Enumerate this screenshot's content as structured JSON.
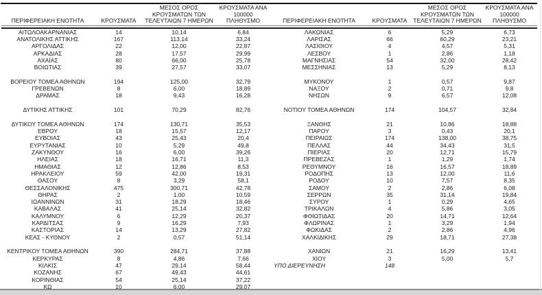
{
  "colors": {
    "background": "#ffffff",
    "text": "#1a1a1a",
    "header_rule": "#1c1c1c",
    "header_underline": "#7a7a7a",
    "top_rule": "#111111",
    "bottom_bar": "#d6d6d6",
    "bottom_bar_border": "#8c8c8c"
  },
  "table": {
    "headers": [
      "ΠΕΡΙΦΕΡΕΙΑΚΗ ΕΝΟΤΗΤΑ",
      "ΚΡΟΥΣΜΑΤΑ",
      "ΜΕΣΟΣ ΟΡΟΣ\nΚΡΟΥΣΜΑΤΩΝ ΤΩΝ\nΤΕΛΕΥΤΑΙΩΝ 7 ΗΜΕΡΩΝ",
      "ΚΡΟΥΣΜΑΤΑ ΑΝΑ 100000\nΠΛΗΘΥΣΜΟ"
    ],
    "left_rows": [
      {
        "name": "ΑΙΤΩΛΟΑΚΑΡΝΑΝΙΑΣ",
        "cases": "14",
        "avg7": "10,14",
        "per100k": "6,84"
      },
      {
        "name": "ΑΝΑΤΟΛΙΚΗΣ ΑΤΤΙΚΗΣ",
        "cases": "167",
        "avg7": "113,14",
        "per100k": "33,24"
      },
      {
        "name": "ΑΡΓΟΛΙΔΑΣ",
        "cases": "22",
        "avg7": "12,00",
        "per100k": "22,87"
      },
      {
        "name": "ΑΡΚΑΔΙΑΣ",
        "cases": "28",
        "avg7": "17,57",
        "per100k": "29,99"
      },
      {
        "name": "ΑΧΑΪΑΣ",
        "cases": "80",
        "avg7": "66,00",
        "per100k": "25,78"
      },
      {
        "name": "ΒΟΙΩΤΙΑΣ",
        "cases": "39",
        "avg7": "27,57",
        "per100k": "33,07"
      },
      null,
      {
        "name": "ΒΟΡΕΙΟΥ ΤΟΜΕΑ ΑΘΗΝΩΝ",
        "cases": "194",
        "avg7": "125,00",
        "per100k": "32,79"
      },
      {
        "name": "ΓΡΕΒΕΝΩΝ",
        "cases": "8",
        "avg7": "6,00",
        "per100k": "18,89"
      },
      {
        "name": "ΔΡΑΜΑΣ",
        "cases": "18",
        "avg7": "9,43",
        "per100k": "16,28"
      },
      null,
      {
        "name": "ΔΥΤΙΚΗΣ ΑΤΤΙΚΗΣ",
        "cases": "101",
        "avg7": "70,29",
        "per100k": "82,76"
      },
      null,
      {
        "name": "ΔΥΤΙΚΟΥ ΤΟΜΕΑ ΑΘΗΝΩΝ",
        "cases": "174",
        "avg7": "130,71",
        "per100k": "35,53"
      },
      {
        "name": "ΕΒΡΟΥ",
        "cases": "18",
        "avg7": "15,57",
        "per100k": "12,17"
      },
      {
        "name": "ΕΥΒΟΙΑΣ",
        "cases": "43",
        "avg7": "25,43",
        "per100k": "20,4"
      },
      {
        "name": "ΕΥΡΥΤΑΝΙΑΣ",
        "cases": "10",
        "avg7": "5,29",
        "per100k": "49,8"
      },
      {
        "name": "ΖΑΚΥΝΘΟΥ",
        "cases": "16",
        "avg7": "6,00",
        "per100k": "39,26"
      },
      {
        "name": "ΗΛΕΙΑΣ",
        "cases": "18",
        "avg7": "16,71",
        "per100k": "11,3"
      },
      {
        "name": "ΗΜΑΘΙΑΣ",
        "cases": "12",
        "avg7": "12,86",
        "per100k": "8,53"
      },
      {
        "name": "ΗΡΑΚΛΕΙΟΥ",
        "cases": "59",
        "avg7": "42,00",
        "per100k": "19,31"
      },
      {
        "name": "ΘΑΣΟΥ",
        "cases": "8",
        "avg7": "3,29",
        "per100k": "58,1"
      },
      {
        "name": "ΘΕΣΣΑΛΟΝΙΚΗΣ",
        "cases": "475",
        "avg7": "300,71",
        "per100k": "42,78"
      },
      {
        "name": "ΘΗΡΑΣ",
        "cases": "2",
        "avg7": "1,00",
        "per100k": "10,59"
      },
      {
        "name": "ΙΩΑΝΝΙΝΩΝ",
        "cases": "31",
        "avg7": "18,29",
        "per100k": "18,46"
      },
      {
        "name": "ΚΑΒΑΛΑΣ",
        "cases": "41",
        "avg7": "25,14",
        "per100k": "32,82"
      },
      {
        "name": "ΚΑΛΥΜΝΟΥ",
        "cases": "6",
        "avg7": "12,29",
        "per100k": "20,37"
      },
      {
        "name": "ΚΑΡΔΙΤΣΑΣ",
        "cases": "9",
        "avg7": "16,29",
        "per100k": "7,93"
      },
      {
        "name": "ΚΑΣΤΟΡΙΑΣ",
        "cases": "14",
        "avg7": "13,29",
        "per100k": "27,82"
      },
      {
        "name": "ΚΕΑΣ - ΚΥΘΝΟΥ",
        "cases": "2",
        "avg7": "0,57",
        "per100k": "51,14"
      },
      null,
      {
        "name": "ΚΕΝΤΡΙΚΟΥ ΤΟΜΕΑ ΑΘΗΝΩΝ",
        "cases": "390",
        "avg7": "284,71",
        "per100k": "37,88"
      },
      {
        "name": "ΚΕΡΚΥΡΑΣ",
        "cases": "8",
        "avg7": "4,86",
        "per100k": "7,66"
      },
      {
        "name": "ΚΙΛΚΙΣ",
        "cases": "47",
        "avg7": "29,14",
        "per100k": "58,44"
      },
      {
        "name": "ΚΟΖΑΝΗΣ",
        "cases": "67",
        "avg7": "49,43",
        "per100k": "44,61"
      },
      {
        "name": "ΚΟΡΙΝΘΙΑΣ",
        "cases": "54",
        "avg7": "25,14",
        "per100k": "37,22"
      },
      {
        "name": "ΚΩ",
        "cases": "10",
        "avg7": "6,00",
        "per100k": "29,07"
      }
    ],
    "right_rows": [
      {
        "name": "ΛΑΚΩΝΙΑΣ",
        "cases": "6",
        "avg7": "5,29",
        "per100k": "6,73"
      },
      {
        "name": "ΛΑΡΙΣΑΣ",
        "cases": "66",
        "avg7": "60,29",
        "per100k": "23,21"
      },
      {
        "name": "ΛΑΣΙΘΙΟΥ",
        "cases": "4",
        "avg7": "4,57",
        "per100k": "5,31"
      },
      {
        "name": "ΛΕΣΒΟΥ",
        "cases": "1",
        "avg7": "2,86",
        "per100k": "1,18"
      },
      {
        "name": "ΜΑΓΝΗΣΙΑΣ",
        "cases": "54",
        "avg7": "32,00",
        "per100k": "28,42"
      },
      {
        "name": "ΜΕΣΣΗΝΙΑΣ",
        "cases": "13",
        "avg7": "5,29",
        "per100k": "8,13"
      },
      null,
      {
        "name": "ΜΥΚΟΝΟΥ",
        "cases": "1",
        "avg7": "0,57",
        "per100k": "9,87"
      },
      {
        "name": "ΝΑΞΟΥ",
        "cases": "2",
        "avg7": "0,71",
        "per100k": "9,8"
      },
      {
        "name": "ΝΗΣΩΝ",
        "cases": "9",
        "avg7": "6,57",
        "per100k": "12,08"
      },
      null,
      {
        "name": "ΝΟΤΙΟΥ ΤΟΜΕΑ ΑΘΗΝΩΝ",
        "cases": "174",
        "avg7": "104,57",
        "per100k": "32,84"
      },
      null,
      {
        "name": "ΞΑΝΘΗΣ",
        "cases": "21",
        "avg7": "10,86",
        "per100k": "18,88"
      },
      {
        "name": "ΠΑΡΟΥ",
        "cases": "3",
        "avg7": "0,43",
        "per100k": "20,1"
      },
      {
        "name": "ΠΕΙΡΑΙΩΣ",
        "cases": "174",
        "avg7": "138,00",
        "per100k": "38,75"
      },
      {
        "name": "ΠΕΛΛΑΣ",
        "cases": "44",
        "avg7": "34,43",
        "per100k": "31,5"
      },
      {
        "name": "ΠΙΕΡΙΑΣ",
        "cases": "20",
        "avg7": "12,71",
        "per100k": "15,79"
      },
      {
        "name": "ΠΡΕΒΕΖΑΣ",
        "cases": "1",
        "avg7": "1,29",
        "per100k": "1,74"
      },
      {
        "name": "ΡΕΘΥΜΝΟΥ",
        "cases": "16",
        "avg7": "16,57",
        "per100k": "18,89"
      },
      {
        "name": "ΡΟΔΟΠΗΣ",
        "cases": "13",
        "avg7": "12,00",
        "per100k": "11,6"
      },
      {
        "name": "ΡΟΔΟΥ",
        "cases": "10",
        "avg7": "7,57",
        "per100k": "8,35"
      },
      {
        "name": "ΣΑΜΟΥ",
        "cases": "2",
        "avg7": "2,86",
        "per100k": "6,08"
      },
      {
        "name": "ΣΕΡΡΩΝ",
        "cases": "35",
        "avg7": "31,14",
        "per100k": "19,84"
      },
      {
        "name": "ΣΥΡΟΥ",
        "cases": "1",
        "avg7": "0,29",
        "per100k": "4,65"
      },
      {
        "name": "ΤΡΙΚΑΛΩΝ",
        "cases": "4",
        "avg7": "5,86",
        "per100k": "3,05"
      },
      {
        "name": "ΦΘΙΩΤΙΔΑΣ",
        "cases": "20",
        "avg7": "14,71",
        "per100k": "12,64"
      },
      {
        "name": "ΦΛΩΡΙΝΑΣ",
        "cases": "1",
        "avg7": "3,29",
        "per100k": "1,94"
      },
      {
        "name": "ΦΩΚΙΔΑΣ",
        "cases": "2",
        "avg7": "2,86",
        "per100k": "4,96"
      },
      {
        "name": "ΧΑΛΚΙΔΙΚΗΣ",
        "cases": "29",
        "avg7": "18,71",
        "per100k": "27,38"
      },
      null,
      {
        "name": "ΧΑΝΙΩΝ",
        "cases": "21",
        "avg7": "16,29",
        "per100k": "13,41"
      },
      {
        "name": "ΧΙΟΥ",
        "cases": "3",
        "avg7": "5,00",
        "per100k": "5,7"
      },
      {
        "name": "ΥΠΟ ΔΙΕΡΕΥΝΗΣΗ",
        "cases": "148",
        "avg7": "",
        "per100k": "",
        "italic": true
      },
      null,
      null,
      null
    ]
  }
}
